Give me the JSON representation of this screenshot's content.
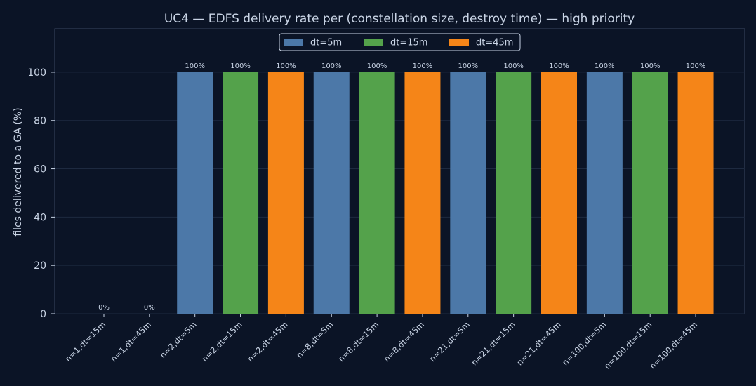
{
  "chart_data": {
    "type": "bar",
    "title": "UC4 — EDFS delivery rate per (constellation size, destroy time) — high priority",
    "xlabel": "",
    "ylabel": "files delivered to a GA (%)",
    "ylim": [
      0,
      118
    ],
    "yticks": [
      0,
      20,
      40,
      60,
      80,
      100
    ],
    "grid": true,
    "legend_position": "top-center",
    "categories": [
      "n=1,dt=15m",
      "n=1,dt=45m",
      "n=2,dt=5m",
      "n=2,dt=15m",
      "n=2,dt=45m",
      "n=8,dt=5m",
      "n=8,dt=15m",
      "n=8,dt=45m",
      "n=21,dt=5m",
      "n=21,dt=15m",
      "n=21,dt=45m",
      "n=100,dt=5m",
      "n=100,dt=15m",
      "n=100,dt=45m"
    ],
    "values": [
      0,
      0,
      100,
      100,
      100,
      100,
      100,
      100,
      100,
      100,
      100,
      100,
      100,
      100
    ],
    "data_labels": [
      "0%",
      "0%",
      "100%",
      "100%",
      "100%",
      "100%",
      "100%",
      "100%",
      "100%",
      "100%",
      "100%",
      "100%",
      "100%",
      "100%"
    ],
    "bar_series": [
      "dt=15m",
      "dt=45m",
      "dt=5m",
      "dt=15m",
      "dt=45m",
      "dt=5m",
      "dt=15m",
      "dt=45m",
      "dt=5m",
      "dt=15m",
      "dt=45m",
      "dt=5m",
      "dt=15m",
      "dt=45m"
    ],
    "legend": [
      {
        "name": "dt=5m",
        "color": "#4c78a8"
      },
      {
        "name": "dt=15m",
        "color": "#54a24b"
      },
      {
        "name": "dt=45m",
        "color": "#f58518"
      }
    ]
  },
  "colors": {
    "background": "#0b1426",
    "plot_background": "#0b1426",
    "axis": "#3a4660",
    "grid": "#1e2a40",
    "text": "#c9d4e5"
  }
}
